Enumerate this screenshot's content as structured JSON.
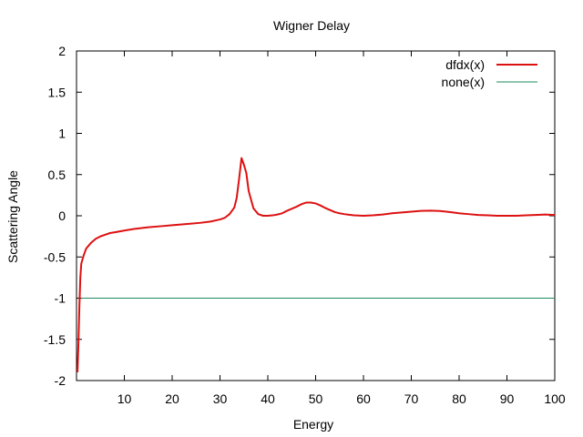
{
  "chart_data": {
    "type": "line",
    "title": "Wigner Delay",
    "xlabel": "Energy",
    "ylabel": "Scattering Angle",
    "xlim": [
      0,
      100
    ],
    "ylim": [
      -2,
      2
    ],
    "xticks": [
      10,
      20,
      30,
      40,
      50,
      60,
      70,
      80,
      90,
      100
    ],
    "yticks": [
      -2,
      -1.5,
      -1,
      -0.5,
      0,
      0.5,
      1,
      1.5,
      2
    ],
    "ytick_labels": [
      "-2",
      "-1.5",
      "-1",
      "-0.5",
      "0",
      "0.5",
      "1",
      "1.5",
      "2"
    ],
    "grid": false,
    "legend_position": "top-right",
    "series": [
      {
        "name": "dfdx(x)",
        "color": "#dd1111",
        "x": [
          0.2,
          0.4,
          0.6,
          0.8,
          1.0,
          1.5,
          2,
          3,
          4,
          5,
          6,
          7,
          8,
          10,
          12,
          15,
          18,
          20,
          22,
          24,
          26,
          28,
          30,
          31,
          32,
          33,
          33.5,
          34,
          34.5,
          35,
          35.5,
          36,
          37,
          38,
          39,
          40,
          41,
          42,
          43,
          44,
          45,
          46,
          47,
          48,
          49,
          50,
          51,
          52,
          53,
          54,
          55,
          56,
          58,
          60,
          62,
          64,
          66,
          68,
          70,
          72,
          74,
          76,
          78,
          80,
          82,
          84,
          86,
          88,
          90,
          92,
          94,
          96,
          98,
          100
        ],
        "y": [
          -1.9,
          -1.55,
          -1.1,
          -0.75,
          -0.58,
          -0.48,
          -0.4,
          -0.33,
          -0.28,
          -0.25,
          -0.23,
          -0.21,
          -0.2,
          -0.18,
          -0.16,
          -0.14,
          -0.125,
          -0.115,
          -0.105,
          -0.095,
          -0.085,
          -0.07,
          -0.045,
          -0.025,
          0.02,
          0.1,
          0.22,
          0.45,
          0.7,
          0.62,
          0.52,
          0.3,
          0.09,
          0.02,
          0.0,
          0.0,
          0.005,
          0.015,
          0.03,
          0.06,
          0.085,
          0.11,
          0.14,
          0.16,
          0.16,
          0.15,
          0.125,
          0.095,
          0.07,
          0.045,
          0.03,
          0.02,
          0.005,
          0.0,
          0.005,
          0.015,
          0.03,
          0.04,
          0.05,
          0.06,
          0.062,
          0.058,
          0.045,
          0.03,
          0.02,
          0.01,
          0.005,
          0.0,
          0.0,
          0.0,
          0.005,
          0.01,
          0.015,
          0.01
        ]
      },
      {
        "name": "none(x)",
        "color": "#1a8a5a",
        "x": [
          1,
          100
        ],
        "y": [
          -1,
          -1
        ]
      }
    ]
  }
}
